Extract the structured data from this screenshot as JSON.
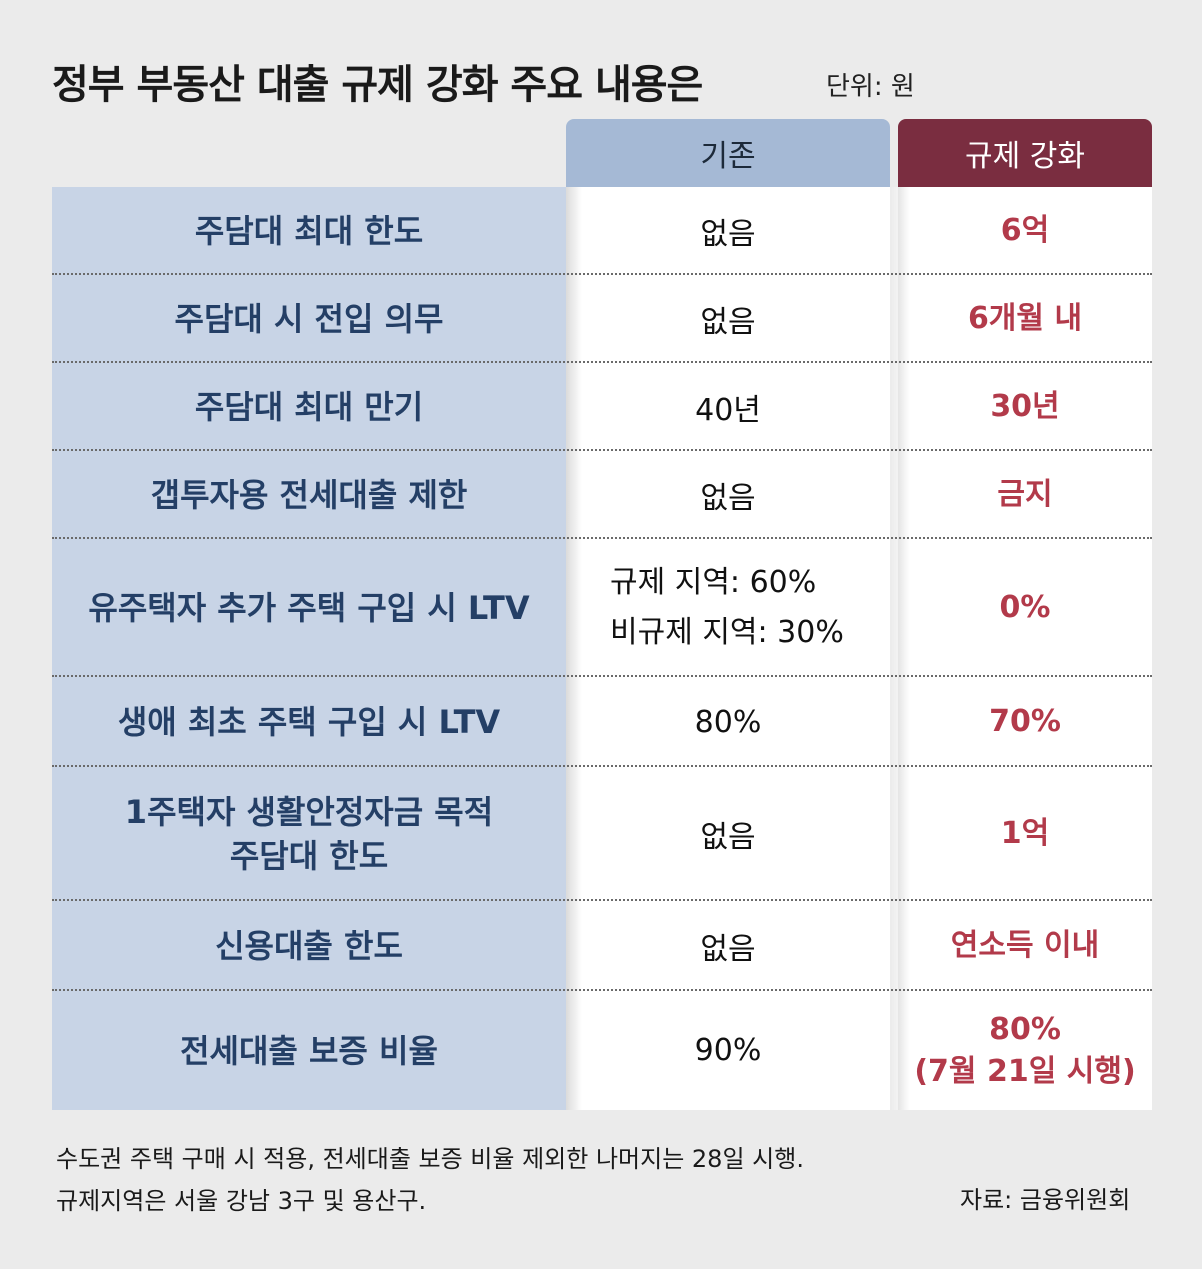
{
  "title": "정부 부동산 대출 규제 강화 주요 내용은",
  "unit": "단위: 원",
  "columns": {
    "existing": "기존",
    "strengthened": "규제 강화"
  },
  "rows": [
    {
      "label": [
        "주담대 최대 한도"
      ],
      "existing": [
        "없음"
      ],
      "strengthened": [
        "6억"
      ]
    },
    {
      "label": [
        "주담대 시 전입 의무"
      ],
      "existing": [
        "없음"
      ],
      "strengthened": [
        "6개월 내"
      ]
    },
    {
      "label": [
        "주담대 최대 만기"
      ],
      "existing": [
        "40년"
      ],
      "strengthened": [
        "30년"
      ]
    },
    {
      "label": [
        "갭투자용 전세대출 제한"
      ],
      "existing": [
        "없음"
      ],
      "strengthened": [
        "금지"
      ]
    },
    {
      "label": [
        "유주택자 추가 주택 구입 시 LTV"
      ],
      "existing": [
        "규제 지역: 60%",
        "비규제 지역: 30%"
      ],
      "strengthened": [
        "0%"
      ]
    },
    {
      "label": [
        "생애 최초 주택 구입 시 LTV"
      ],
      "existing": [
        "80%"
      ],
      "strengthened": [
        "70%"
      ]
    },
    {
      "label": [
        "1주택자 생활안정자금 목적",
        "주담대 한도"
      ],
      "existing": [
        "없음"
      ],
      "strengthened": [
        "1억"
      ]
    },
    {
      "label": [
        "신용대출 한도"
      ],
      "existing": [
        "없음"
      ],
      "strengthened": [
        "연소득 이내"
      ]
    },
    {
      "label": [
        "전세대출 보증 비율"
      ],
      "existing": [
        "90%"
      ],
      "strengthened": [
        "80%",
        "(7월 21일 시행)"
      ]
    }
  ],
  "footer": [
    "수도권 주택 구매 시 적용, 전세대출 보증 비율 제외한 나머지는 28일 시행.",
    "규제지역은 서울 강남 3구 및 용산구."
  ],
  "source": "자료: 금융위원회"
}
